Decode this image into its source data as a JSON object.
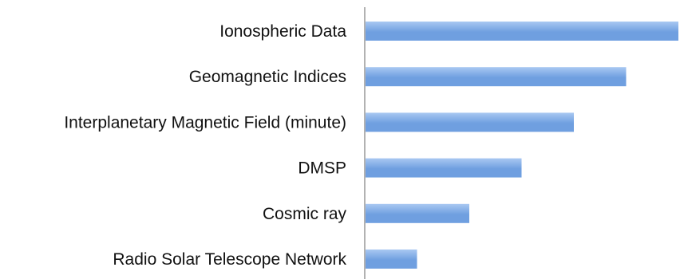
{
  "chart_data": {
    "type": "bar",
    "orientation": "horizontal",
    "title": "",
    "xlabel": "",
    "ylabel": "",
    "categories": [
      "Ionospheric Data",
      "Geomagnetic Indices",
      "Interplanetary Magnetic Field (minute)",
      "DMSP",
      "Cosmic ray",
      "Radio Solar Telescope Network"
    ],
    "values": [
      6,
      5,
      4,
      3,
      2,
      1
    ],
    "xlim": [
      0,
      6
    ],
    "grid": false,
    "legend": "none",
    "value_axis_visible": false,
    "bar_color": "#6f9fe0",
    "bar_color_light": "#a9c8f2",
    "axis_color": "#999999"
  }
}
